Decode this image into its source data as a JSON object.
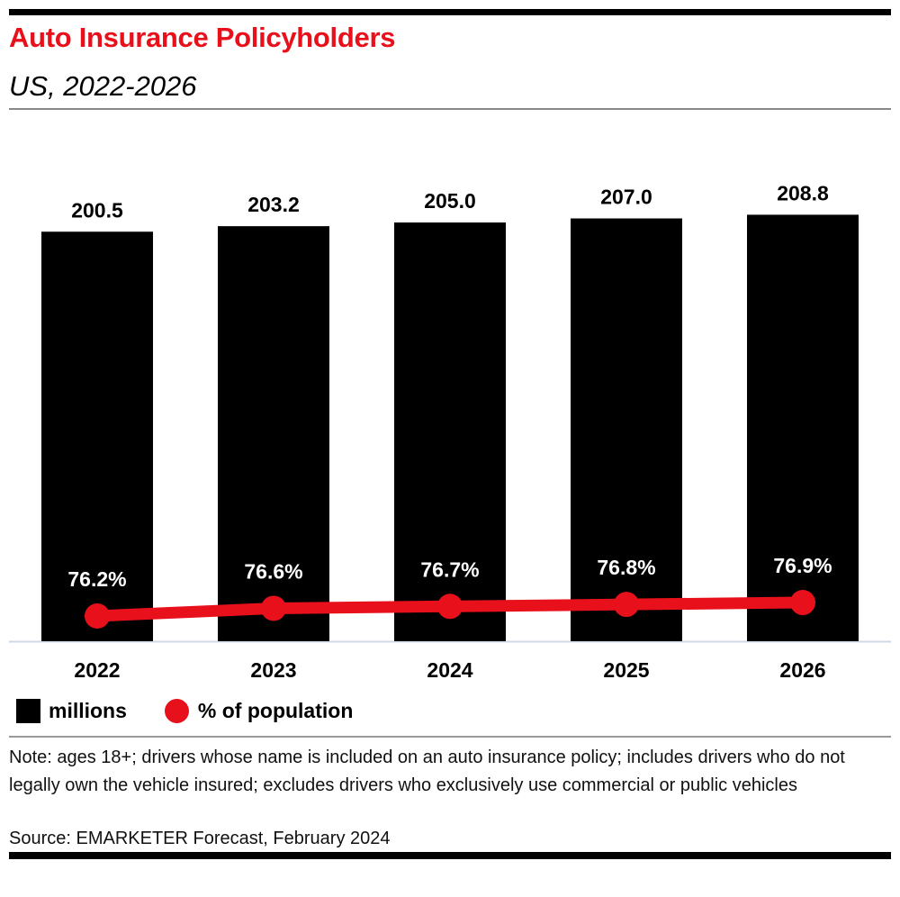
{
  "title": "Auto Insurance Policyholders",
  "subtitle": "US, 2022-2026",
  "chart_data": {
    "type": "bar",
    "categories": [
      "2022",
      "2023",
      "2024",
      "2025",
      "2026"
    ],
    "series": [
      {
        "name": "millions",
        "type": "bar",
        "values": [
          200.5,
          203.2,
          205.0,
          207.0,
          208.8
        ],
        "labels": [
          "200.5",
          "203.2",
          "205.0",
          "207.0",
          "208.8"
        ],
        "color": "#000000"
      },
      {
        "name": "% of population",
        "type": "line",
        "values": [
          76.2,
          76.6,
          76.7,
          76.8,
          76.9
        ],
        "labels": [
          "76.2%",
          "76.6%",
          "76.7%",
          "76.8%",
          "76.9%"
        ],
        "color": "#e8101a"
      }
    ],
    "ylim": [
      0,
      230
    ],
    "grid": false,
    "legend": "bottom-left"
  },
  "legend": {
    "millions": "millions",
    "pct": "% of population"
  },
  "note": "Note: ages 18+; drivers whose name is included on an auto insurance policy; includes drivers who do not legally own the vehicle insured; excludes drivers who exclusively use commercial or public vehicles",
  "source": "Source: EMARKETER Forecast, February 2024",
  "colors": {
    "accent": "#e8101a",
    "bar": "#000000"
  }
}
